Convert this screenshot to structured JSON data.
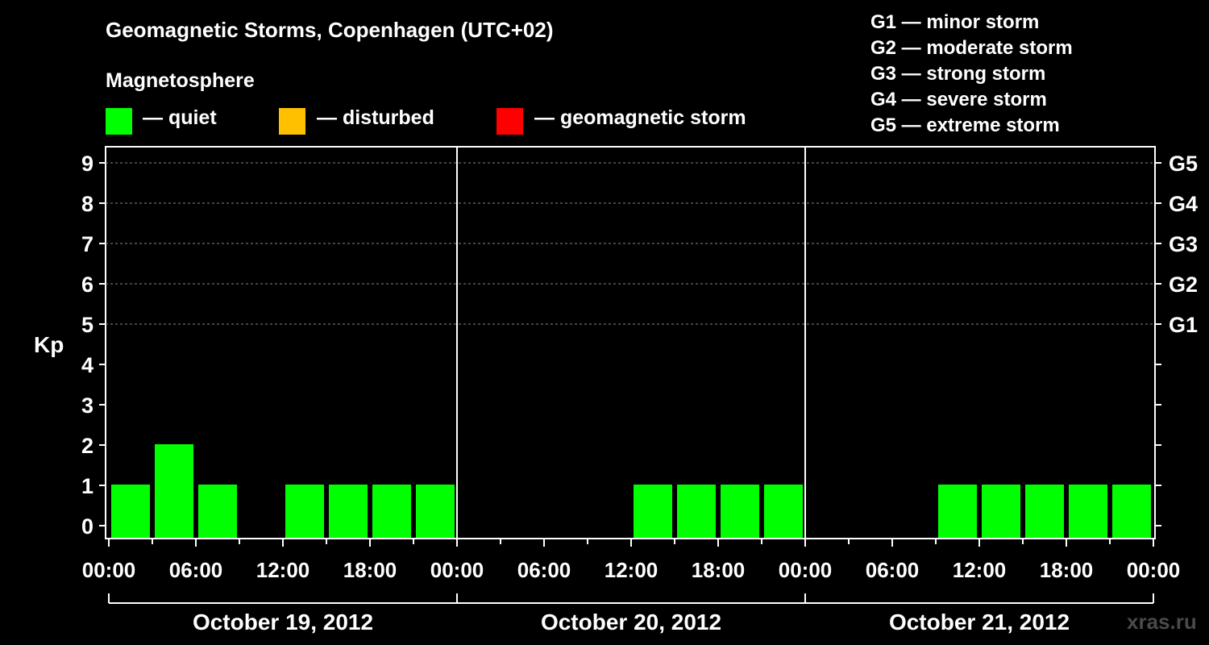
{
  "title": "Geomagnetic Storms, Copenhagen (UTC+02)",
  "magnetosphere": {
    "title": "Magnetosphere",
    "items": [
      {
        "label": "— quiet",
        "color": "#00ff00"
      },
      {
        "label": "— disturbed",
        "color": "#ffc000"
      },
      {
        "label": "— geomagnetic storm",
        "color": "#ff0000"
      }
    ]
  },
  "g_legend": [
    "G1 — minor storm",
    "G2 — moderate storm",
    "G3 — strong storm",
    "G4 — severe storm",
    "G5 — extreme storm"
  ],
  "watermark": "xras.ru",
  "chart_data": {
    "type": "bar",
    "ylabel": "Kp",
    "ylim": [
      0,
      9
    ],
    "yticks": [
      0,
      1,
      2,
      3,
      4,
      5,
      6,
      7,
      8,
      9
    ],
    "right_ticks": [
      {
        "label": "G1",
        "kp": 5
      },
      {
        "label": "G2",
        "kp": 6
      },
      {
        "label": "G3",
        "kp": 7
      },
      {
        "label": "G4",
        "kp": 8
      },
      {
        "label": "G5",
        "kp": 9
      }
    ],
    "grid": "dashed horizontal lines at Kp 5–9",
    "x_tick_labels": [
      "00:00",
      "06:00",
      "12:00",
      "18:00",
      "00:00",
      "06:00",
      "12:00",
      "18:00",
      "00:00",
      "06:00",
      "12:00",
      "18:00",
      "00:00"
    ],
    "days": [
      "October 19, 2012",
      "October 20, 2012",
      "October 21, 2012"
    ],
    "color_quiet": "#00ff00",
    "series": [
      {
        "values": [
          1,
          2,
          1,
          null,
          1,
          1,
          1,
          1,
          null,
          null,
          null,
          null,
          1,
          1,
          1,
          1,
          null,
          null,
          null,
          1,
          1,
          1,
          1,
          1
        ]
      }
    ]
  }
}
